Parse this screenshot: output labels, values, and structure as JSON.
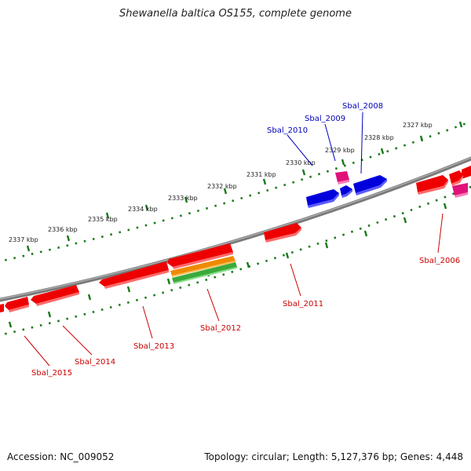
{
  "title": "Shewanella baltica OS155, complete genome",
  "footer": {
    "accession": "Accession: NC_009052",
    "info": "Topology: circular; Length: 5,127,376 bp; Genes: 4,448"
  },
  "colors": {
    "backbone": "#7a7a7a",
    "scale_dots": "#1a7a1a",
    "gene_red": "#ee0000",
    "gene_blue": "#0000dd",
    "gene_magenta": "#e0127a",
    "gene_orange": "#ef8a00",
    "gene_green": "#3aaa3a",
    "label_red": "#cc0000",
    "label_blue": "#0000bb"
  },
  "scale_labels": [
    "2327 kbp",
    "2328 kbp",
    "2329 kbp",
    "2330 kbp",
    "2331 kbp",
    "2332 kbp",
    "2333 kbp",
    "2334 kbp",
    "2335 kbp",
    "2336 kbp",
    "2337 kbp"
  ],
  "gene_labels": [
    "Sbal_2006",
    "Sbal_2008",
    "Sbal_2009",
    "Sbal_2010",
    "Sbal_2011",
    "Sbal_2012",
    "Sbal_2013",
    "Sbal_2014",
    "Sbal_2015"
  ]
}
